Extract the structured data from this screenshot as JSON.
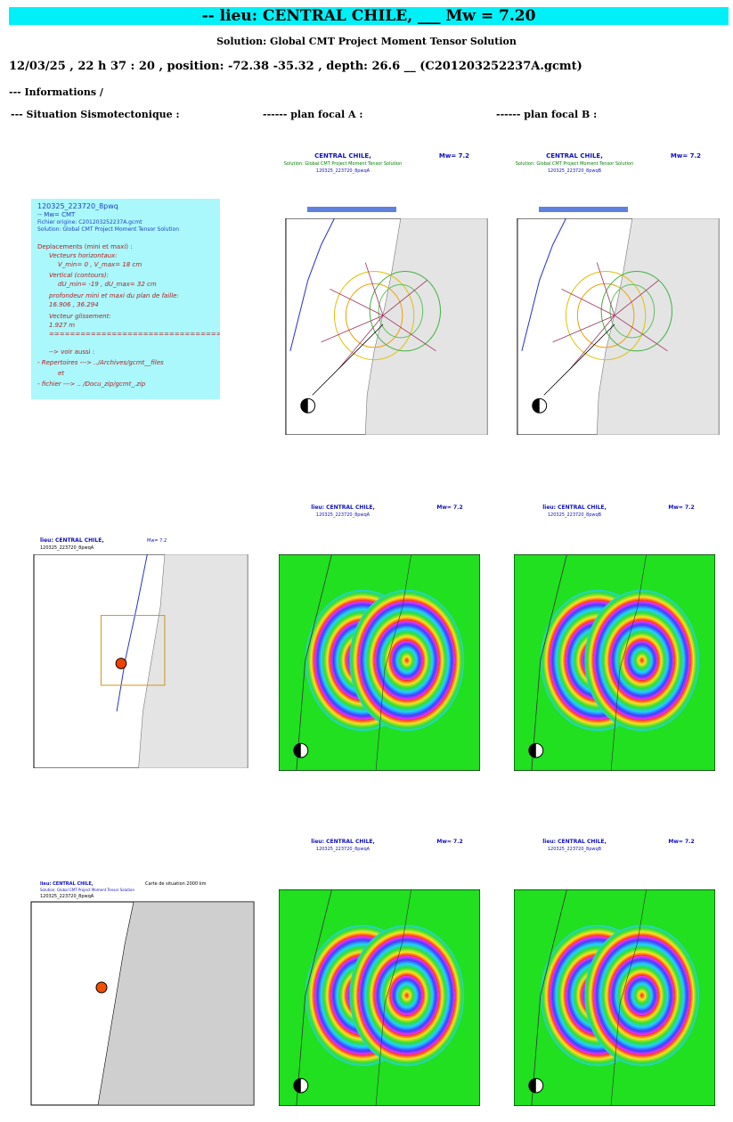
{
  "header": {
    "title": "-- lieu: CENTRAL CHILE, ___ Mw = 7.20",
    "subtitle": "Solution: Global CMT Project Moment Tensor Solution",
    "event_line": "12/03/25 , 22 h 37 : 20 , position: -72.38 -35.32 , depth: 26.6 __ (C201203252237A.gcmt)",
    "informations": "--- Informations /"
  },
  "columns": [
    "--- Situation Sismotectonique :",
    "------ plan focal A :",
    "------ plan focal B :"
  ],
  "info_box": {
    "lines": [
      "120325_223720_8pwq",
      "-- Mw= CMT",
      "Fichier origine: C201203252237A.gcmt",
      "Solution: Global CMT Project Moment Tensor Solution",
      "Deplacements (mini et maxi) :",
      "Vecteurs horizontaux:",
      "V_min= 0 , V_max= 18 cm",
      "Vertical (contours):",
      "dU_min= -19 , dU_max= 32 cm",
      "profondeur mini et maxi du plan de faille:",
      "16.906 , 36.294",
      "Vecteur glissement:",
      "1.927 m",
      "==========================================",
      "--> voir aussi :",
      "- Repertoires  --->  ../Archives/gcmt__files",
      "et",
      "- fichier  ---> .. /Docu_zip/gcmt_.zip"
    ]
  },
  "panels": {
    "place": "CENTRAL CHILE,",
    "place_lieu": "lieu: CENTRAL CHILE,",
    "solution": "Solution: Global CMT Project Moment Tensor Solution",
    "id_a": "120325_223720_8pwqA",
    "id_b": "120325_223720_8pwqB",
    "mw": "Mw= 7.2",
    "map_title": "Carte de situation 2000 km"
  }
}
